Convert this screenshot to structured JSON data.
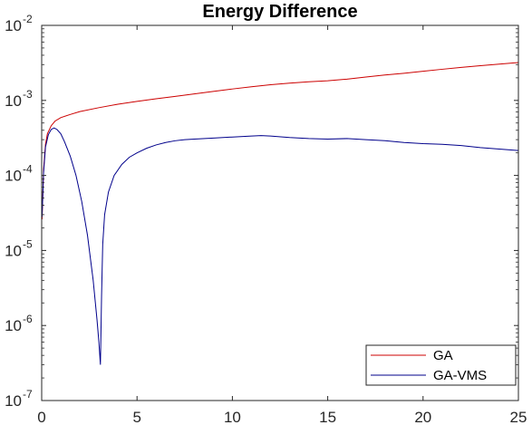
{
  "chart_data": {
    "type": "line",
    "title": "Energy Difference",
    "xlabel": "",
    "ylabel": "",
    "xlim": [
      0,
      25
    ],
    "ylim": [
      1e-07,
      0.01
    ],
    "yscale": "log",
    "x_ticks": [
      "0",
      "5",
      "10",
      "15",
      "20",
      "25"
    ],
    "y_ticks": [
      {
        "base": "10",
        "exp": "-7"
      },
      {
        "base": "10",
        "exp": "-6"
      },
      {
        "base": "10",
        "exp": "-5"
      },
      {
        "base": "10",
        "exp": "-4"
      },
      {
        "base": "10",
        "exp": "-3"
      },
      {
        "base": "10",
        "exp": "-2"
      }
    ],
    "grid": false,
    "legend_position": "bottom-right",
    "series": [
      {
        "name": "GA",
        "color": "#cc0000",
        "x": [
          0.02,
          0.1,
          0.2,
          0.3,
          0.5,
          0.7,
          1.0,
          1.5,
          2,
          3,
          4,
          5,
          6,
          7,
          8,
          9,
          10,
          11,
          12,
          13,
          14,
          15,
          16,
          17,
          18,
          19,
          20,
          21,
          22,
          23,
          24,
          25
        ],
        "y": [
          2.6e-05,
          0.00012,
          0.00026,
          0.00036,
          0.00046,
          0.00053,
          0.00059,
          0.00065,
          0.00071,
          0.0008,
          0.00089,
          0.00097,
          0.00105,
          0.00113,
          0.00122,
          0.00132,
          0.00142,
          0.00152,
          0.00162,
          0.0017,
          0.00177,
          0.00183,
          0.00192,
          0.00205,
          0.00218,
          0.0023,
          0.00245,
          0.0026,
          0.00275,
          0.0029,
          0.00305,
          0.0032
        ]
      },
      {
        "name": "GA-VMS",
        "color": "#00008b",
        "x": [
          0.02,
          0.1,
          0.2,
          0.35,
          0.5,
          0.65,
          0.8,
          1.0,
          1.2,
          1.5,
          1.8,
          2.1,
          2.4,
          2.7,
          2.9,
          3.0,
          3.08,
          3.14,
          3.2,
          3.3,
          3.5,
          3.8,
          4.2,
          4.6,
          5,
          5.5,
          6,
          6.5,
          7,
          7.5,
          8,
          9,
          10,
          11,
          11.5,
          12,
          13,
          14,
          15,
          16,
          17,
          18,
          19,
          20,
          21,
          22,
          23,
          24,
          25
        ],
        "y": [
          2.8e-05,
          0.00011,
          0.00024,
          0.00035,
          0.00041,
          0.00043,
          0.00041,
          0.00036,
          0.00028,
          0.00018,
          0.0001,
          4.5e-05,
          1.6e-05,
          4e-06,
          1.2e-06,
          6e-07,
          3e-07,
          2.5e-06,
          1.2e-05,
          3e-05,
          6e-05,
          0.0001,
          0.00014,
          0.000175,
          0.0002,
          0.00023,
          0.000255,
          0.000275,
          0.00029,
          0.0003,
          0.000305,
          0.000315,
          0.000325,
          0.000335,
          0.00034,
          0.000335,
          0.00032,
          0.00031,
          0.000305,
          0.00031,
          0.0003,
          0.00029,
          0.000275,
          0.000265,
          0.00026,
          0.00025,
          0.000235,
          0.000225,
          0.000215
        ]
      }
    ]
  }
}
